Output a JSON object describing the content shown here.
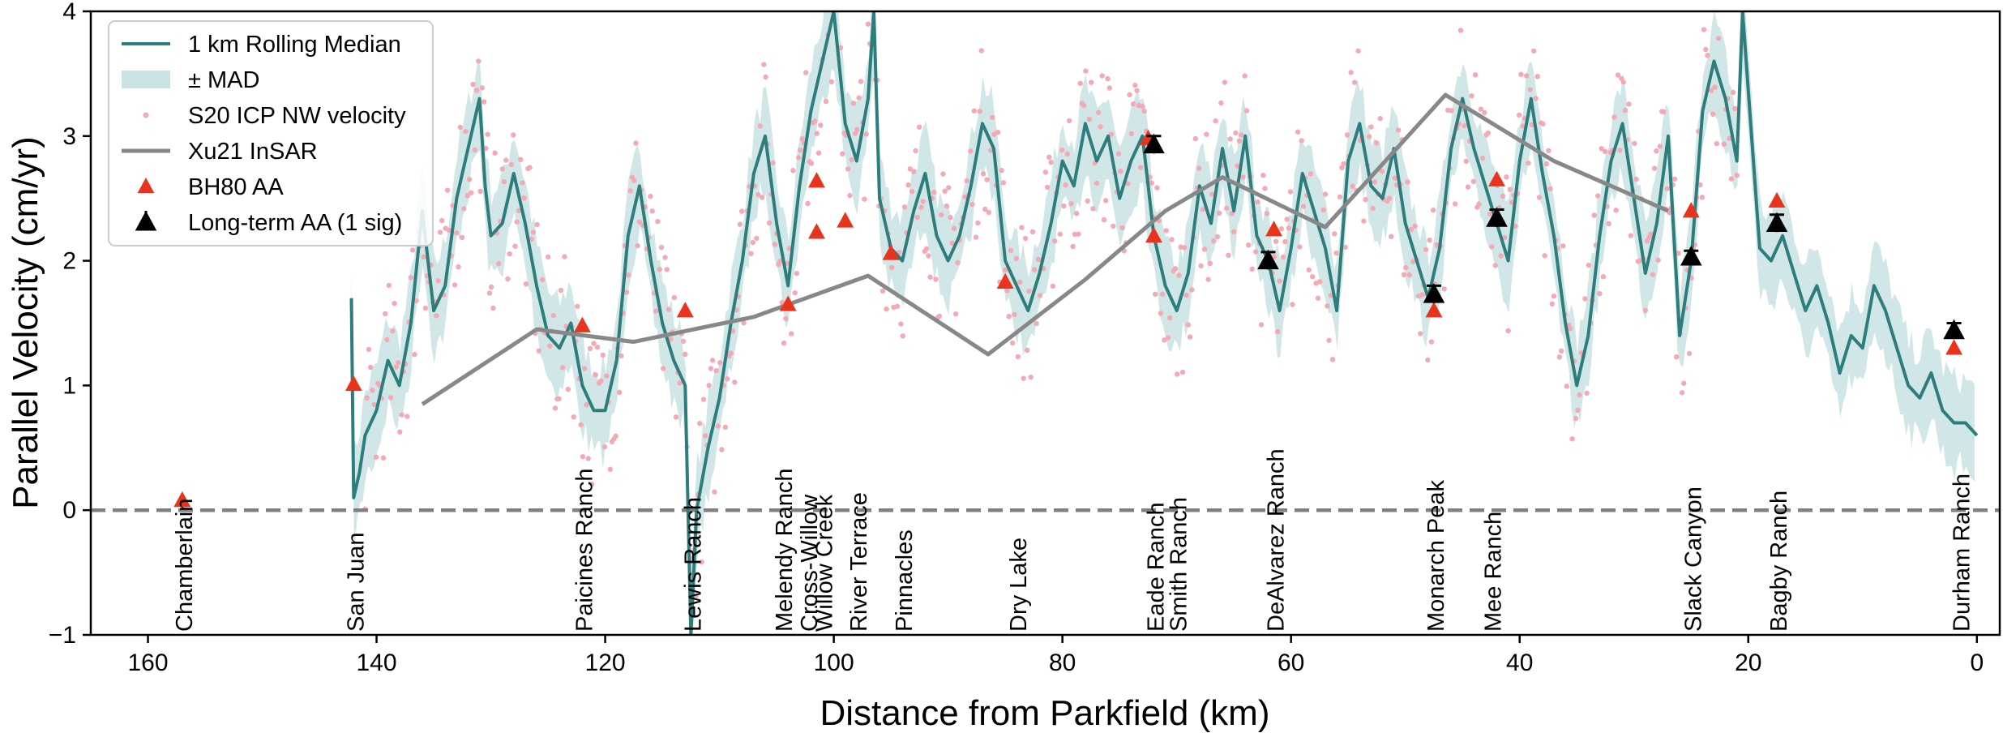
{
  "chart_data": {
    "type": "line",
    "title": "",
    "xlabel": "Distance from Parkfield (km)",
    "ylabel": "Parallel Velocity (cm/yr)",
    "xlim": [
      165,
      -2
    ],
    "ylim": [
      -1,
      4
    ],
    "x_reversed": true,
    "xticks": [
      160,
      140,
      120,
      100,
      80,
      60,
      40,
      20,
      0
    ],
    "yticks": [
      -1,
      0,
      1,
      2,
      3,
      4
    ],
    "grid": false,
    "legend_position": "top-left",
    "zero_line": {
      "y": 0,
      "style": "dashed",
      "color": "#808080"
    },
    "colors": {
      "median": "#2e7d7d",
      "mad": "#c9e3e3",
      "s20": "#f4aab4",
      "xu21": "#888888",
      "bh80": "#e8341c",
      "longterm": "#000000"
    },
    "legend": [
      {
        "key": "median",
        "label": "1 km Rolling Median"
      },
      {
        "key": "mad",
        "label": "± MAD"
      },
      {
        "key": "s20",
        "label": "S20 ICP NW velocity"
      },
      {
        "key": "xu21",
        "label": "Xu21 InSAR"
      },
      {
        "key": "bh80",
        "label": "BH80 AA"
      },
      {
        "key": "longterm",
        "label": "Long-term AA (1 sig)"
      }
    ],
    "sites": [
      {
        "name": "Chamberlain",
        "x": 157
      },
      {
        "name": "San Juan",
        "x": 142
      },
      {
        "name": "Paicines Ranch",
        "x": 122
      },
      {
        "name": "Lewis Ranch",
        "x": 112.5
      },
      {
        "name": "Melendy Ranch",
        "x": 104.5
      },
      {
        "name": "Cross-Willow",
        "x": 102.3
      },
      {
        "name": "Willow Creek",
        "x": 101
      },
      {
        "name": "River Terrace",
        "x": 98
      },
      {
        "name": "Pinnacles",
        "x": 94
      },
      {
        "name": "Dry Lake",
        "x": 84
      },
      {
        "name": "Eade Ranch",
        "x": 72
      },
      {
        "name": "Smith Ranch",
        "x": 70
      },
      {
        "name": "DeAlvarez Ranch",
        "x": 61.5
      },
      {
        "name": "Monarch Peak",
        "x": 47.5
      },
      {
        "name": "Mee Ranch",
        "x": 42.5
      },
      {
        "name": "Slack Canyon",
        "x": 25
      },
      {
        "name": "Bagby Ranch",
        "x": 17.5
      },
      {
        "name": "Durham Ranch",
        "x": 1.5
      }
    ],
    "series": [
      {
        "name": "1 km Rolling Median",
        "type": "line",
        "points": [
          [
            142.2,
            1.7
          ],
          [
            142,
            0.1
          ],
          [
            141.5,
            0.3
          ],
          [
            141,
            0.6
          ],
          [
            140,
            0.8
          ],
          [
            139,
            1.2
          ],
          [
            138,
            1.0
          ],
          [
            137,
            1.5
          ],
          [
            136,
            2.4
          ],
          [
            135.5,
            2.0
          ],
          [
            135,
            1.6
          ],
          [
            134,
            1.8
          ],
          [
            133,
            2.5
          ],
          [
            132,
            2.9
          ],
          [
            131,
            3.3
          ],
          [
            130.5,
            2.6
          ],
          [
            130,
            2.2
          ],
          [
            129,
            2.3
          ],
          [
            128,
            2.7
          ],
          [
            127,
            2.3
          ],
          [
            126,
            1.8
          ],
          [
            125,
            1.4
          ],
          [
            124,
            1.3
          ],
          [
            123,
            1.5
          ],
          [
            122,
            1.0
          ],
          [
            121,
            0.8
          ],
          [
            120,
            0.8
          ],
          [
            119,
            1.2
          ],
          [
            118,
            2.2
          ],
          [
            117,
            2.6
          ],
          [
            116,
            2.0
          ],
          [
            115,
            1.5
          ],
          [
            114,
            1.2
          ],
          [
            113,
            1.0
          ],
          [
            112.5,
            -1.0
          ],
          [
            112,
            0.0
          ],
          [
            111,
            0.5
          ],
          [
            110,
            0.9
          ],
          [
            109,
            1.5
          ],
          [
            108,
            2.0
          ],
          [
            107,
            2.7
          ],
          [
            106,
            3.0
          ],
          [
            105,
            2.3
          ],
          [
            104,
            1.8
          ],
          [
            103,
            2.6
          ],
          [
            102,
            3.2
          ],
          [
            101,
            3.6
          ],
          [
            100,
            4.0
          ],
          [
            99,
            3.1
          ],
          [
            98,
            2.8
          ],
          [
            97,
            3.3
          ],
          [
            96.5,
            4.0
          ],
          [
            96,
            2.5
          ],
          [
            95,
            2.1
          ],
          [
            94,
            2.0
          ],
          [
            93,
            2.4
          ],
          [
            92,
            2.7
          ],
          [
            91,
            2.2
          ],
          [
            90,
            2.0
          ],
          [
            89,
            2.2
          ],
          [
            88,
            2.6
          ],
          [
            87,
            3.1
          ],
          [
            86,
            2.9
          ],
          [
            85,
            2.0
          ],
          [
            84,
            1.8
          ],
          [
            83,
            1.6
          ],
          [
            82,
            1.9
          ],
          [
            81,
            2.3
          ],
          [
            80,
            2.8
          ],
          [
            79,
            2.6
          ],
          [
            78,
            3.1
          ],
          [
            77,
            2.8
          ],
          [
            76,
            3.0
          ],
          [
            75,
            2.5
          ],
          [
            74,
            2.8
          ],
          [
            73,
            3.0
          ],
          [
            72,
            2.2
          ],
          [
            71,
            1.8
          ],
          [
            70,
            1.6
          ],
          [
            69,
            1.9
          ],
          [
            68,
            2.6
          ],
          [
            67,
            2.3
          ],
          [
            66,
            2.9
          ],
          [
            65,
            2.4
          ],
          [
            64,
            3.0
          ],
          [
            63,
            2.2
          ],
          [
            62,
            2.0
          ],
          [
            61,
            1.6
          ],
          [
            60,
            2.1
          ],
          [
            59,
            2.7
          ],
          [
            58,
            2.4
          ],
          [
            57,
            2.1
          ],
          [
            56,
            1.6
          ],
          [
            55,
            2.8
          ],
          [
            54,
            3.1
          ],
          [
            53,
            2.6
          ],
          [
            52,
            2.5
          ],
          [
            51,
            2.9
          ],
          [
            50,
            2.3
          ],
          [
            49,
            2.0
          ],
          [
            48,
            1.7
          ],
          [
            47,
            2.1
          ],
          [
            46,
            2.9
          ],
          [
            45,
            3.3
          ],
          [
            44,
            2.9
          ],
          [
            43,
            2.6
          ],
          [
            42,
            2.3
          ],
          [
            41,
            2.0
          ],
          [
            40,
            2.8
          ],
          [
            39,
            3.3
          ],
          [
            38,
            2.7
          ],
          [
            37,
            2.2
          ],
          [
            36,
            1.5
          ],
          [
            35,
            1.0
          ],
          [
            34,
            1.4
          ],
          [
            33,
            2.2
          ],
          [
            32,
            2.8
          ],
          [
            31,
            3.1
          ],
          [
            30,
            2.5
          ],
          [
            29,
            1.9
          ],
          [
            28,
            2.3
          ],
          [
            27,
            3.0
          ],
          [
            26,
            1.4
          ],
          [
            25,
            2.0
          ],
          [
            24,
            3.2
          ],
          [
            23,
            3.6
          ],
          [
            22,
            3.3
          ],
          [
            21,
            2.8
          ],
          [
            20.5,
            4.0
          ],
          [
            19,
            2.1
          ],
          [
            18,
            2.0
          ],
          [
            17,
            2.2
          ],
          [
            16,
            1.9
          ],
          [
            15,
            1.6
          ],
          [
            14,
            1.8
          ],
          [
            13,
            1.5
          ],
          [
            12,
            1.1
          ],
          [
            11,
            1.4
          ],
          [
            10,
            1.3
          ],
          [
            9,
            1.8
          ],
          [
            8,
            1.6
          ],
          [
            7,
            1.3
          ],
          [
            6,
            1.0
          ],
          [
            5,
            0.9
          ],
          [
            4,
            1.1
          ],
          [
            3,
            0.8
          ],
          [
            2,
            0.7
          ],
          [
            1,
            0.7
          ],
          [
            0,
            0.6
          ]
        ]
      },
      {
        "name": "Xu21 InSAR",
        "type": "line",
        "points": [
          [
            136,
            0.85
          ],
          [
            126,
            1.45
          ],
          [
            117.5,
            1.35
          ],
          [
            107,
            1.55
          ],
          [
            97,
            1.88
          ],
          [
            86.5,
            1.25
          ],
          [
            78,
            1.85
          ],
          [
            71,
            2.4
          ],
          [
            66,
            2.67
          ],
          [
            57,
            2.27
          ],
          [
            46.5,
            3.33
          ],
          [
            37,
            2.8
          ],
          [
            27,
            2.4
          ]
        ]
      },
      {
        "name": "BH80 AA",
        "type": "markers",
        "points": [
          [
            157,
            0.08
          ],
          [
            142,
            1.01
          ],
          [
            122,
            1.48
          ],
          [
            113,
            1.6
          ],
          [
            104,
            1.65
          ],
          [
            101.5,
            2.64
          ],
          [
            101.5,
            2.23
          ],
          [
            99,
            2.32
          ],
          [
            95,
            2.06
          ],
          [
            85,
            1.83
          ],
          [
            72.5,
            2.98
          ],
          [
            72,
            2.2
          ],
          [
            61.5,
            2.25
          ],
          [
            47.5,
            1.6
          ],
          [
            42,
            2.65
          ],
          [
            25,
            2.4
          ],
          [
            17.5,
            2.48
          ],
          [
            2,
            1.3
          ]
        ]
      },
      {
        "name": "Long-term AA (1 sig)",
        "type": "markers",
        "points": [
          [
            72,
            2.93,
            0.07
          ],
          [
            62,
            2.0,
            0.07
          ],
          [
            47.5,
            1.73,
            0.07
          ],
          [
            42,
            2.34,
            0.07
          ],
          [
            25,
            2.03,
            0.05
          ],
          [
            17.5,
            2.3,
            0.07
          ],
          [
            2,
            1.44,
            0.06
          ]
        ]
      }
    ]
  }
}
